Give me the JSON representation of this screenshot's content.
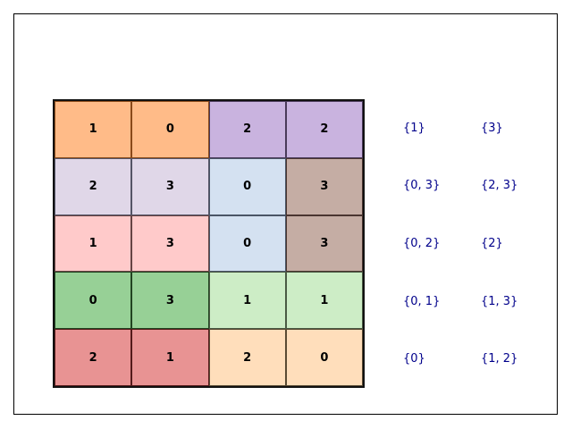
{
  "grid": {
    "rows": [
      [
        {
          "value": "1",
          "color": "#ffbb88",
          "border": "#8a4a1a"
        },
        {
          "value": "0",
          "color": "#ffbb88",
          "border": "#8a4a1a"
        },
        {
          "value": "2",
          "color": "#c9b3df",
          "border": "#4a3a5a"
        },
        {
          "value": "2",
          "color": "#c9b3df",
          "border": "#4a3a5a"
        }
      ],
      [
        {
          "value": "2",
          "color": "#e0d7e8",
          "border": "#555566"
        },
        {
          "value": "3",
          "color": "#e0d7e8",
          "border": "#555566"
        },
        {
          "value": "0",
          "color": "#d4e1f1",
          "border": "#4a5566"
        },
        {
          "value": "3",
          "color": "#c5ada4",
          "border": "#4a3530"
        }
      ],
      [
        {
          "value": "1",
          "color": "#ffcaca",
          "border": "#664444"
        },
        {
          "value": "3",
          "color": "#ffcaca",
          "border": "#664444"
        },
        {
          "value": "0",
          "color": "#d4e1f1",
          "border": "#4a5566"
        },
        {
          "value": "3",
          "color": "#c5ada4",
          "border": "#4a3530"
        }
      ],
      [
        {
          "value": "0",
          "color": "#97d096",
          "border": "#224422"
        },
        {
          "value": "3",
          "color": "#97d096",
          "border": "#224422"
        },
        {
          "value": "1",
          "color": "#cdedc6",
          "border": "#4a5a44"
        },
        {
          "value": "1",
          "color": "#cdedc6",
          "border": "#4a5a44"
        }
      ],
      [
        {
          "value": "2",
          "color": "#e89393",
          "border": "#551a1a"
        },
        {
          "value": "1",
          "color": "#e89393",
          "border": "#551a1a"
        },
        {
          "value": "2",
          "color": "#ffdebb",
          "border": "#5a4a33"
        },
        {
          "value": "0",
          "color": "#ffdebb",
          "border": "#5a4a33"
        }
      ]
    ]
  },
  "labels": [
    {
      "a": "{1}",
      "b": "{3}"
    },
    {
      "a": "{0, 3}",
      "b": "{2, 3}"
    },
    {
      "a": "{0, 2}",
      "b": "{2}"
    },
    {
      "a": "{0, 1}",
      "b": "{1, 3}"
    },
    {
      "a": "{0}",
      "b": "{1, 2}"
    }
  ],
  "colors": {
    "label_text": "#00008b"
  }
}
